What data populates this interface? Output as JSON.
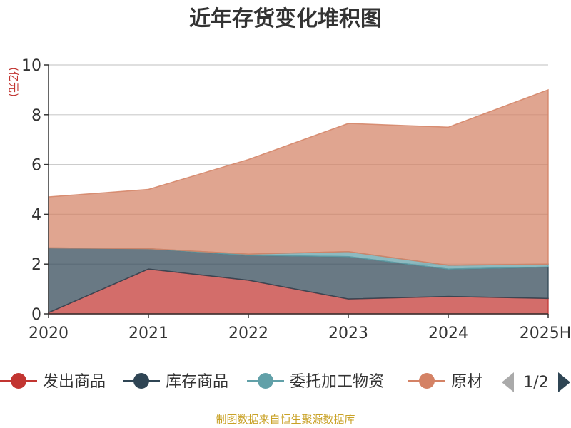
{
  "chart_data": {
    "type": "area",
    "stacked": true,
    "title": "近年存货变化堆积图",
    "ylabel": "(亿元)",
    "ylim": [
      0,
      10
    ],
    "yticks": [
      0,
      2,
      4,
      6,
      8,
      10
    ],
    "categories": [
      "2020",
      "2021",
      "2022",
      "2023",
      "2024",
      "2025H"
    ],
    "grid": true,
    "legend_position": "bottom",
    "series": [
      {
        "name": "发出商品",
        "color": "#c23531",
        "values": [
          0.05,
          1.8,
          1.35,
          0.6,
          0.7,
          0.62
        ]
      },
      {
        "name": "库存商品",
        "color": "#2f4554",
        "values": [
          2.6,
          0.82,
          1.0,
          1.7,
          1.1,
          1.26
        ]
      },
      {
        "name": "委托加工物资",
        "color": "#61a0a8",
        "values": [
          0.0,
          0.0,
          0.05,
          0.2,
          0.15,
          0.12
        ]
      },
      {
        "name": "原材料",
        "color": "#d48265",
        "values": [
          2.05,
          2.38,
          3.8,
          5.15,
          5.55,
          7.0
        ]
      }
    ]
  },
  "legend": {
    "items": [
      "发出商品",
      "库存商品",
      "委托加工物资",
      "原材"
    ],
    "page_label": "1/2"
  },
  "source_text": "制图数据来自恒生聚源数据库"
}
